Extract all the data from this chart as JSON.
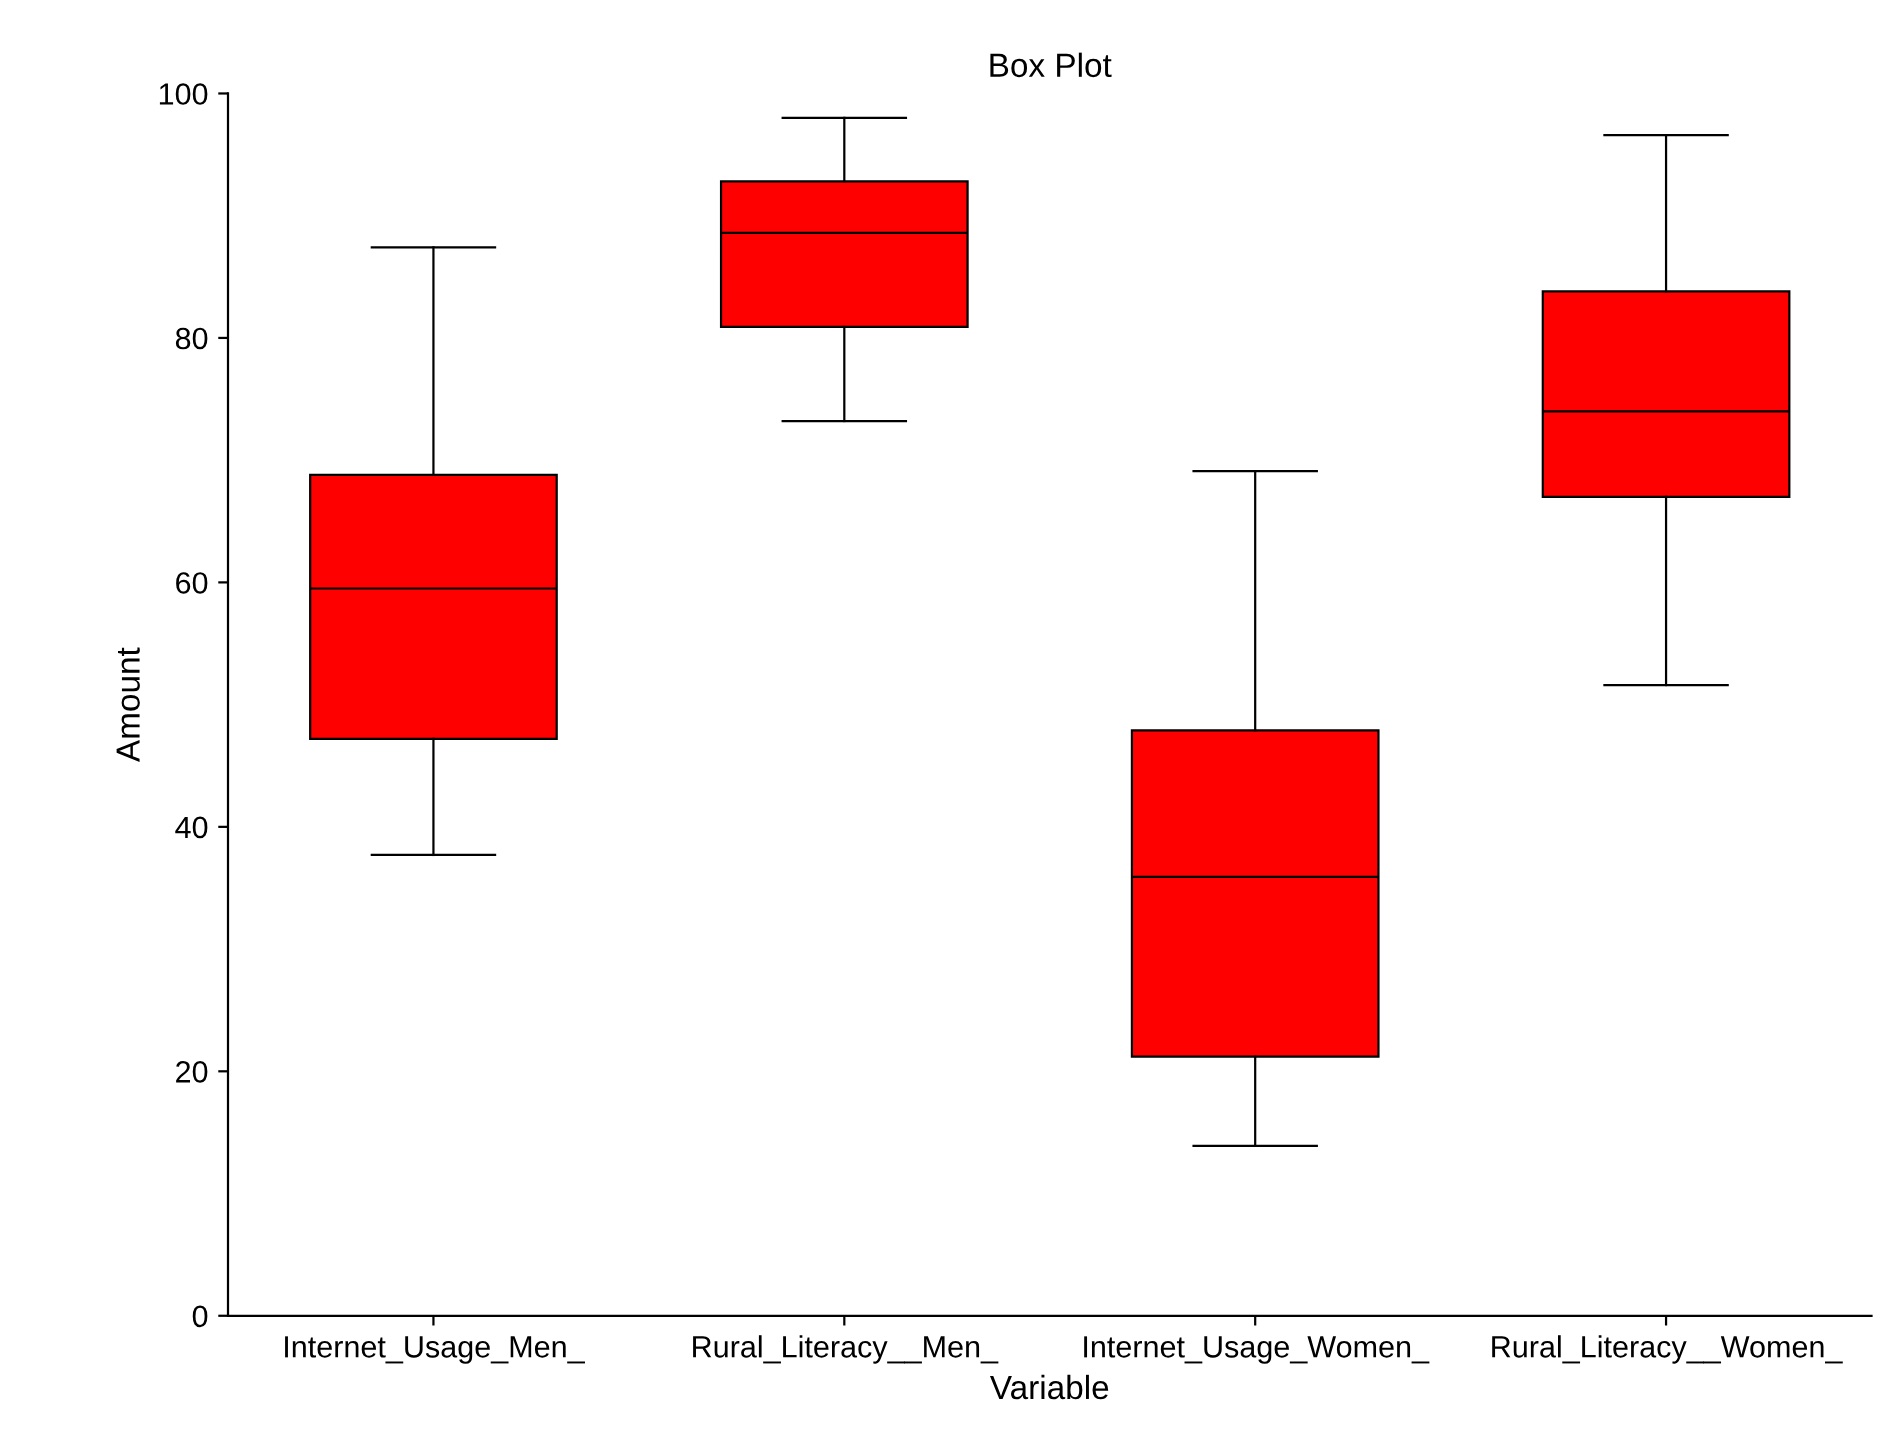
{
  "chart_data": {
    "type": "box",
    "title": "Box Plot",
    "xlabel": "Variable",
    "ylabel": "Amount",
    "categories": [
      "Internet_Usage_Men_",
      "Rural_Literacy__Men_",
      "Internet_Usage_Women_",
      "Rural_Literacy__Women_"
    ],
    "boxes": [
      {
        "low": 37.7,
        "q1": 47.2,
        "median": 59.5,
        "q3": 68.8,
        "high": 87.4
      },
      {
        "low": 73.2,
        "q1": 80.9,
        "median": 88.6,
        "q3": 92.8,
        "high": 98.0
      },
      {
        "low": 13.9,
        "q1": 21.2,
        "median": 35.9,
        "q3": 47.9,
        "high": 69.1
      },
      {
        "low": 51.6,
        "q1": 67.0,
        "median": 74.0,
        "q3": 83.8,
        "high": 96.6
      }
    ],
    "color": "#ff0000",
    "ylim": [
      0,
      100
    ],
    "yticks": [
      0,
      20,
      40,
      60,
      80,
      100
    ]
  }
}
